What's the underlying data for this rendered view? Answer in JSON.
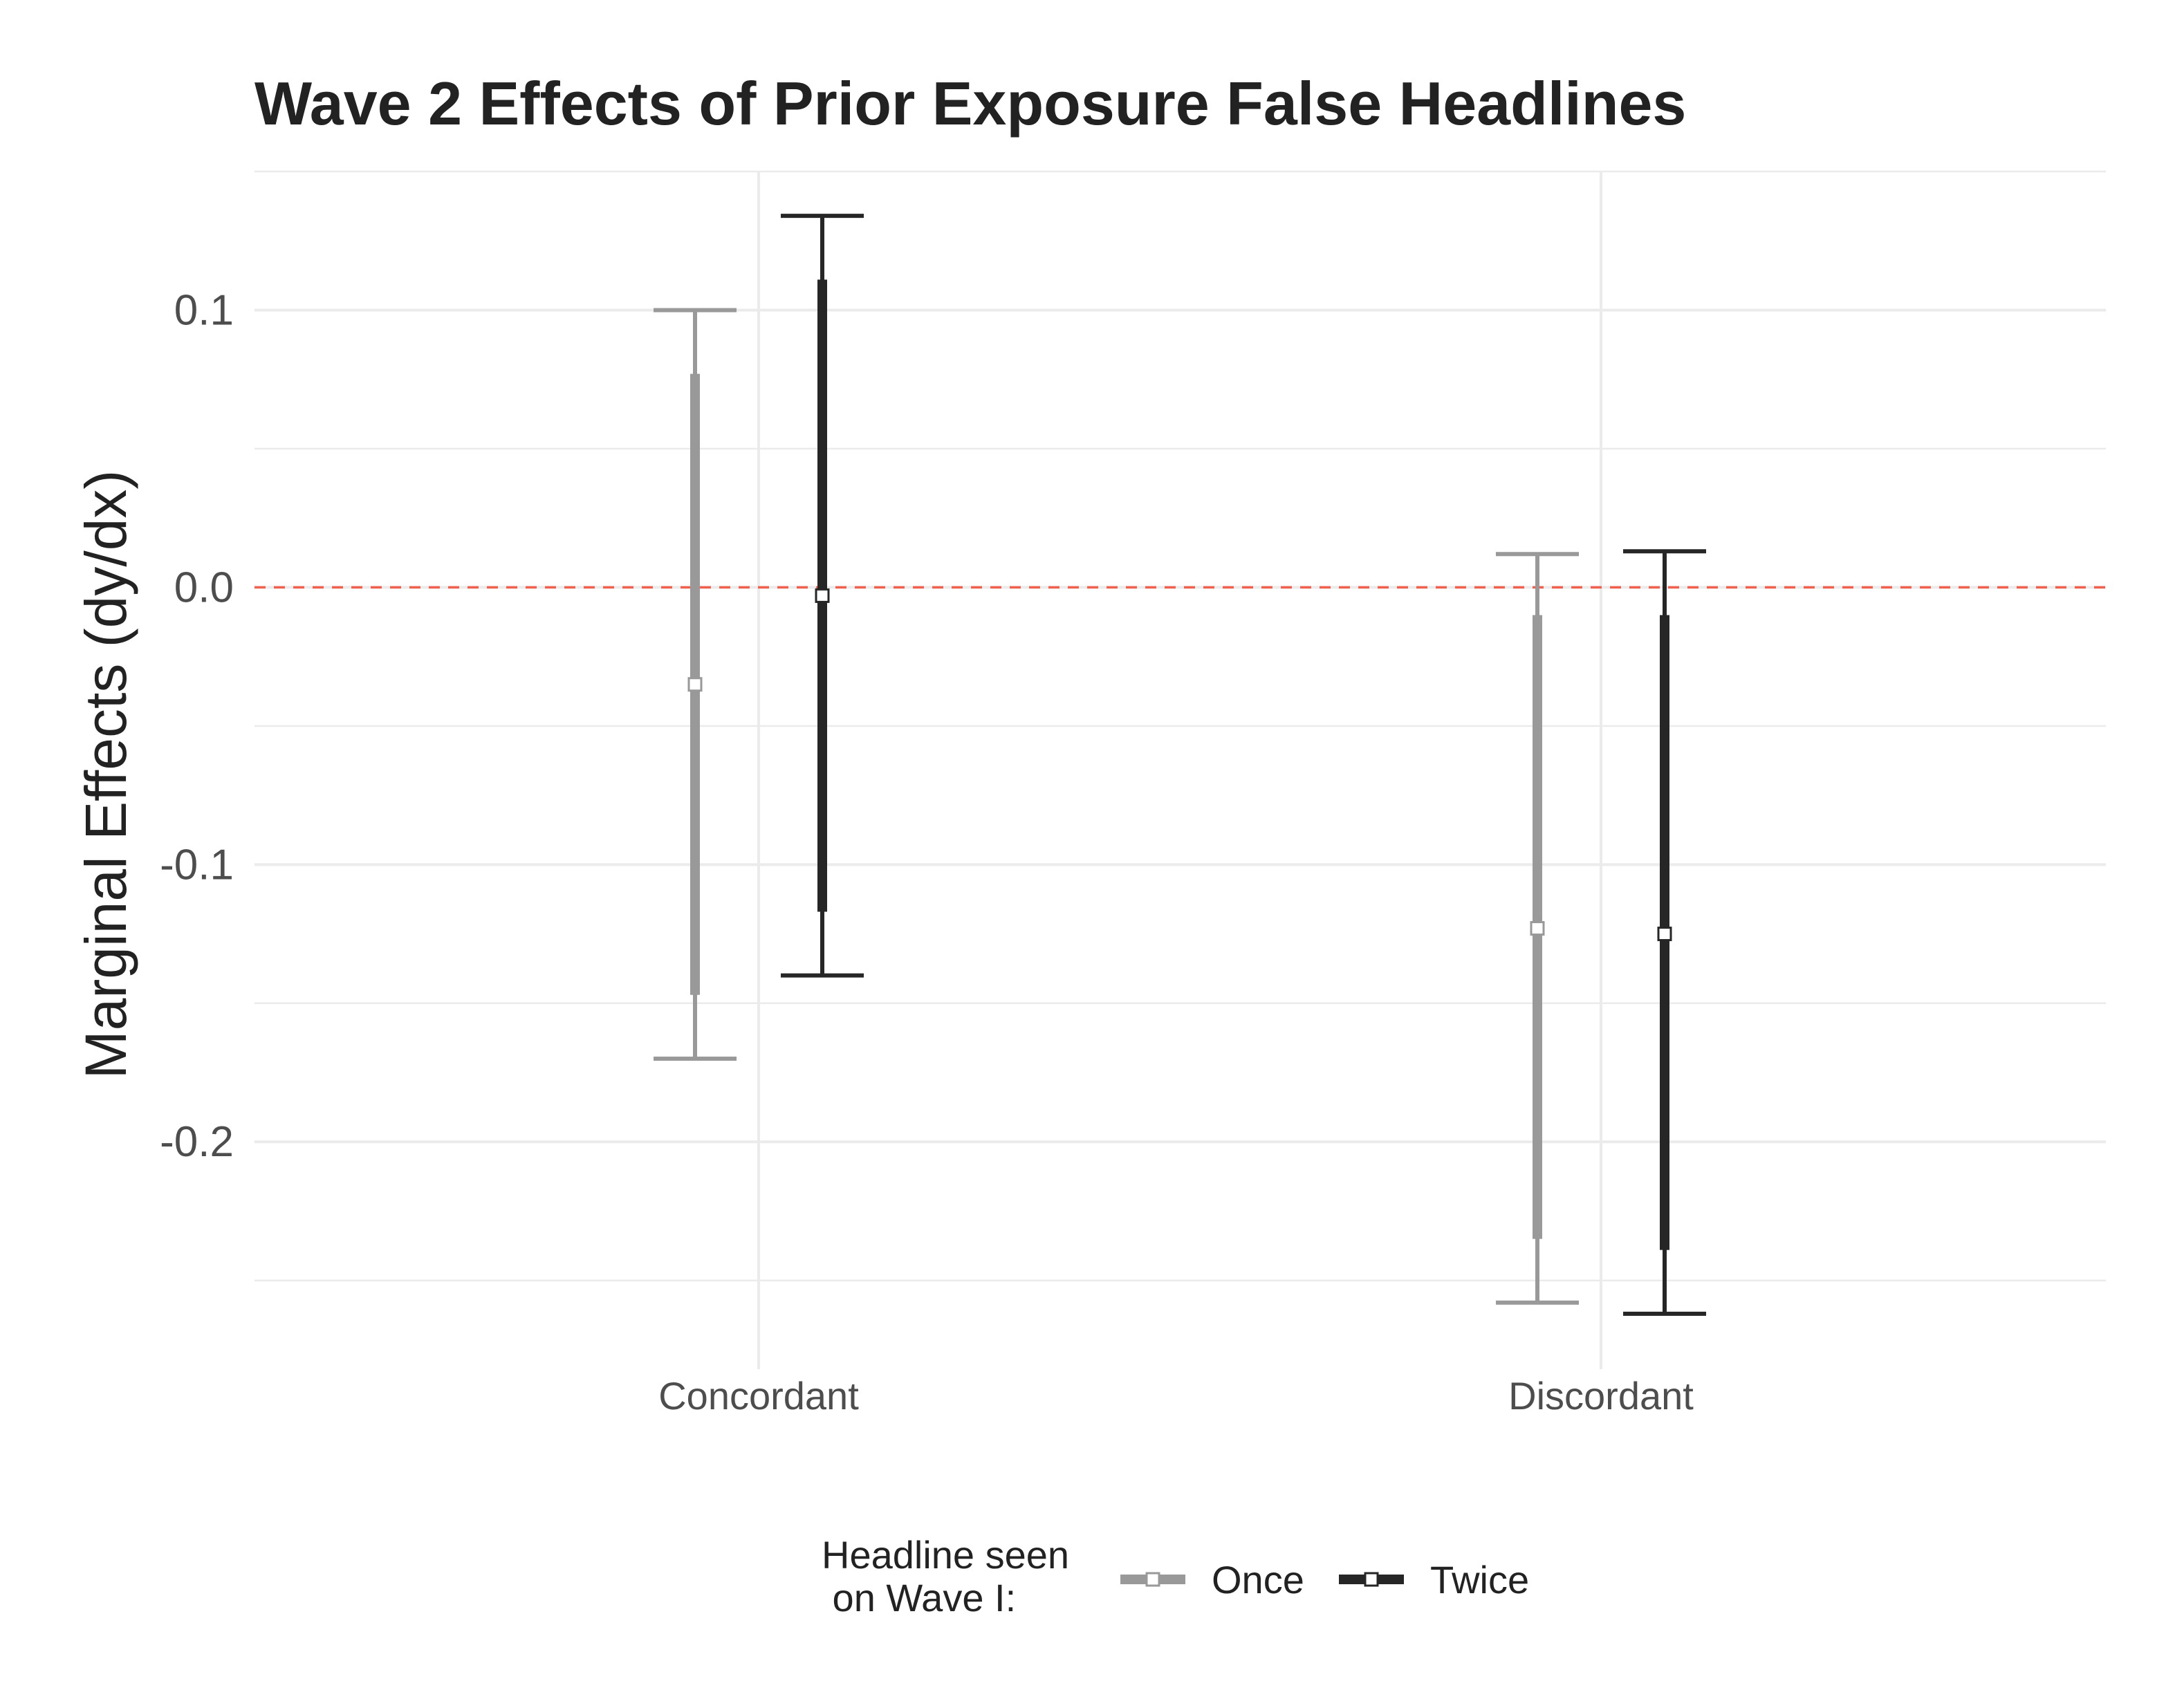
{
  "chart_data": {
    "type": "errorbar",
    "title": "Wave 2 Effects of Prior Exposure False Headlines",
    "ylabel": "Marginal Effects (dy/dx)",
    "xlabel": "",
    "categories": [
      "Concordant",
      "Discordant"
    ],
    "ylim": [
      -0.282,
      0.15
    ],
    "y_ticks": [
      0.1,
      0.0,
      -0.1,
      -0.2
    ],
    "y_tick_labels": [
      "0.1",
      "0.0",
      "-0.1",
      "-0.2"
    ],
    "reference_line": {
      "y": 0,
      "color": "#f0604d",
      "style": "dashed"
    },
    "grid": true,
    "legend": {
      "title_lines": [
        "Headline seen",
        " on Wave I:"
      ],
      "position": "bottom"
    },
    "series": [
      {
        "name": "Once",
        "color": "#999999",
        "points": [
          {
            "category": "Concordant",
            "estimate": -0.035,
            "ci90": [
              -0.147,
              0.077
            ],
            "ci95": [
              -0.17,
              0.1
            ]
          },
          {
            "category": "Discordant",
            "estimate": -0.123,
            "ci90": [
              -0.235,
              -0.01
            ],
            "ci95": [
              -0.258,
              0.012
            ]
          }
        ]
      },
      {
        "name": "Twice",
        "color": "#262626",
        "points": [
          {
            "category": "Concordant",
            "estimate": -0.003,
            "ci90": [
              -0.117,
              0.111
            ],
            "ci95": [
              -0.14,
              0.134
            ]
          },
          {
            "category": "Discordant",
            "estimate": -0.125,
            "ci90": [
              -0.239,
              -0.01
            ],
            "ci95": [
              -0.262,
              0.013
            ]
          }
        ]
      }
    ]
  }
}
